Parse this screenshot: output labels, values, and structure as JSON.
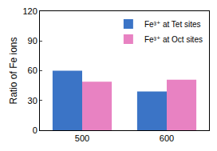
{
  "chart_data": {
    "type": "bar",
    "y_label": "Ratio of Fe ions",
    "categories": [
      "500",
      "600"
    ],
    "series": [
      {
        "name": "Fe³⁺ at Tet sites",
        "color": "#3b74c6",
        "values": [
          60,
          39
        ]
      },
      {
        "name": "Fe³⁺ at Oct sites",
        "color": "#e882c2",
        "values": [
          49,
          51
        ]
      }
    ],
    "ylim": [
      0,
      120
    ],
    "yticks": [
      0,
      30,
      60,
      90,
      120
    ],
    "grid": false,
    "legend": "upper right"
  }
}
